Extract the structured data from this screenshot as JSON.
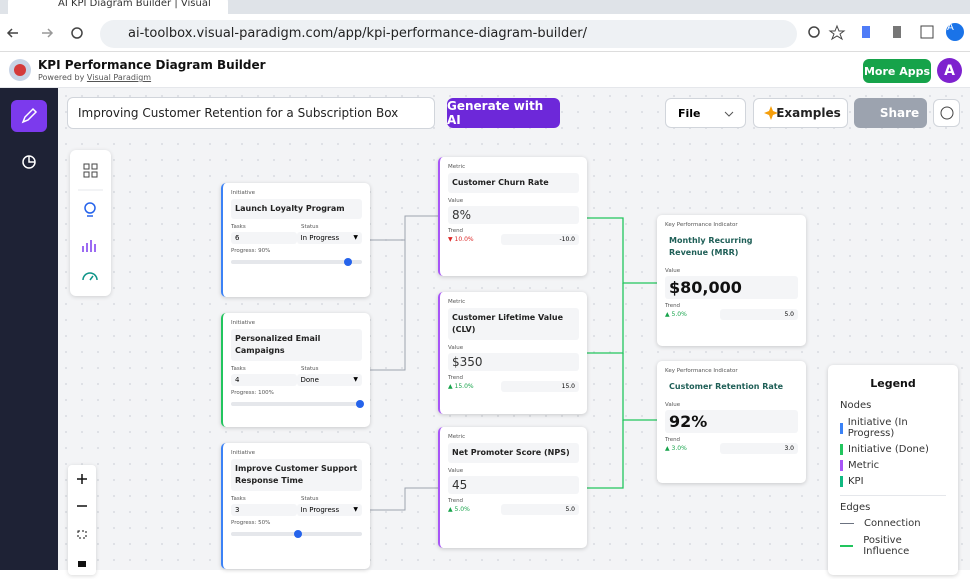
{
  "browser": {
    "tab_title": "AI KPI Diagram Builder | Visual",
    "url": "ai-toolbox.visual-paradigm.com/app/kpi-performance-diagram-builder/",
    "profile": "A"
  },
  "header": {
    "title": "KPI Performance Diagram Builder",
    "powered_by": "Powered by",
    "powered_link": "Visual Paradigm",
    "more_apps": "More Apps",
    "avatar": "A"
  },
  "toolbar": {
    "prompt": "Improving Customer Retention for a Subscription Box",
    "generate": "Generate with AI",
    "file": "File",
    "examples": "Examples",
    "share": "Share"
  },
  "initiatives": [
    {
      "kind": "Initiative",
      "title": "Launch Loyalty Program",
      "tasks_label": "Tasks",
      "tasks": "6",
      "status_label": "Status",
      "status": "In Progress",
      "progress_label": "Progress: 90%",
      "progress": 90
    },
    {
      "kind": "Initiative",
      "title": "Personalized Email Campaigns",
      "tasks_label": "Tasks",
      "tasks": "4",
      "status_label": "Status",
      "status": "Done",
      "progress_label": "Progress: 100%",
      "progress": 100
    },
    {
      "kind": "Initiative",
      "title": "Improve Customer Support Response Time",
      "tasks_label": "Tasks",
      "tasks": "3",
      "status_label": "Status",
      "status": "In Progress",
      "progress_label": "Progress: 50%",
      "progress": 50
    }
  ],
  "metrics": [
    {
      "kind": "Metric",
      "title": "Customer Churn Rate",
      "value_label": "Value",
      "value": "8%",
      "trend_label": "Trend",
      "trend": "▼ 10.0%",
      "trend_value": "-10.0"
    },
    {
      "kind": "Metric",
      "title": "Customer Lifetime Value (CLV)",
      "value_label": "Value",
      "value": "$350",
      "trend_label": "Trend",
      "trend": "▲ 15.0%",
      "trend_value": "15.0"
    },
    {
      "kind": "Metric",
      "title": "Net Promoter Score (NPS)",
      "value_label": "Value",
      "value": "45",
      "trend_label": "Trend",
      "trend": "▲ 5.0%",
      "trend_value": "5.0"
    }
  ],
  "kpis": [
    {
      "kind": "Key Performance Indicator",
      "title": "Monthly Recurring Revenue (MRR)",
      "value_label": "Value",
      "value": "$80,000",
      "trend_label": "Trend",
      "trend": "▲ 5.0%",
      "trend_value": "5.0"
    },
    {
      "kind": "Key Performance Indicator",
      "title": "Customer Retention Rate",
      "value_label": "Value",
      "value": "92%",
      "trend_label": "Trend",
      "trend": "▲ 3.0%",
      "trend_value": "3.0"
    }
  ],
  "legend": {
    "title": "Legend",
    "nodes_heading": "Nodes",
    "nodes": [
      "Initiative (In Progress)",
      "Initiative (Done)",
      "Metric",
      "KPI"
    ],
    "edges_heading": "Edges",
    "edges": [
      "Connection",
      "Positive Influence"
    ]
  }
}
